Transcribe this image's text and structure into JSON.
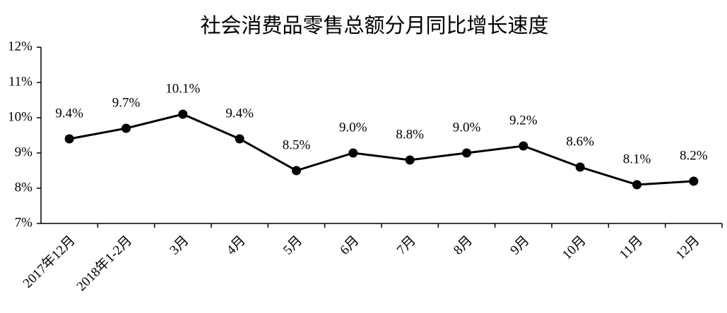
{
  "chart_data": {
    "type": "line",
    "title": "社会消费品零售总额分月同比增长速度",
    "categories": [
      "2017年12月",
      "2018年1-2月",
      "3月",
      "4月",
      "5月",
      "6月",
      "7月",
      "8月",
      "9月",
      "10月",
      "11月",
      "12月"
    ],
    "values": [
      9.4,
      9.7,
      10.1,
      9.4,
      8.5,
      9.0,
      8.8,
      9.0,
      9.2,
      8.6,
      8.1,
      8.2
    ],
    "value_labels": [
      "9.4%",
      "9.7%",
      "10.1%",
      "9.4%",
      "8.5%",
      "9.0%",
      "8.8%",
      "9.0%",
      "9.2%",
      "8.6%",
      "8.1%",
      "8.2%"
    ],
    "color": "#000000",
    "ylim": [
      7,
      12
    ],
    "yticks": [
      {
        "value": 7,
        "label": "7%"
      },
      {
        "value": 8,
        "label": "8%"
      },
      {
        "value": 9,
        "label": "9%"
      },
      {
        "value": 10,
        "label": "10%"
      },
      {
        "value": 11,
        "label": "11%"
      },
      {
        "value": 12,
        "label": "12%"
      }
    ],
    "grid": false
  }
}
